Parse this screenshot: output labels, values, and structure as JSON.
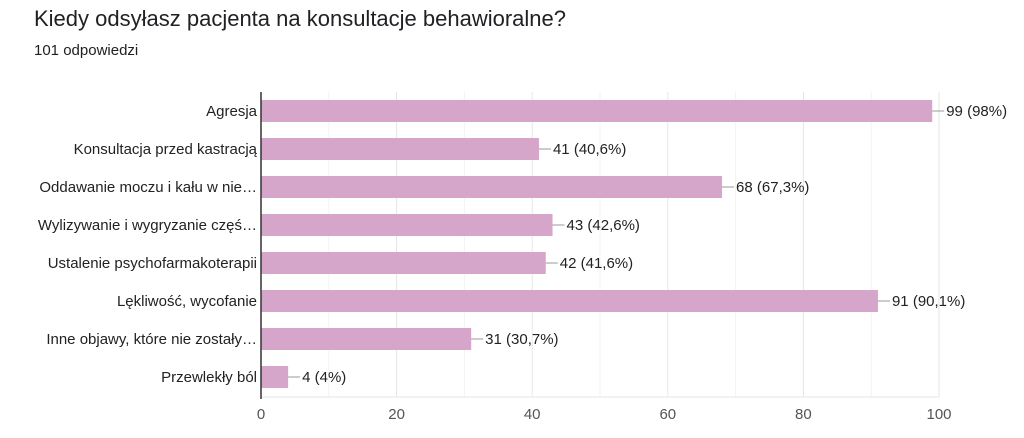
{
  "title": "Kiedy odsyłasz pacjenta na konsultacje behawioralne?",
  "subtitle": "101 odpowiedzi",
  "chart_data": {
    "type": "bar",
    "orientation": "horizontal",
    "categories": [
      "Agresja",
      "Konsultacja przed kastracją",
      "Oddawanie moczu i kału w nie…",
      "Wylizywanie i wygryzanie częś…",
      "Ustalenie psychofarmakoterapii",
      "Lękliwość, wycofanie",
      "Inne objawy, które nie zostały…",
      "Przewlekły ból"
    ],
    "values": [
      99,
      41,
      68,
      43,
      42,
      91,
      31,
      4
    ],
    "data_labels": [
      "99 (98%)",
      "41 (40,6%)",
      "68 (67,3%)",
      "43 (42,6%)",
      "42 (41,6%)",
      "91 (90,1%)",
      "31 (30,7%)",
      "4 (4%)"
    ],
    "xlim": [
      0,
      100
    ],
    "xticks": [
      "0",
      "20",
      "40",
      "60",
      "80",
      "100"
    ],
    "grid": true,
    "bar_color": "#d5a6c9"
  }
}
